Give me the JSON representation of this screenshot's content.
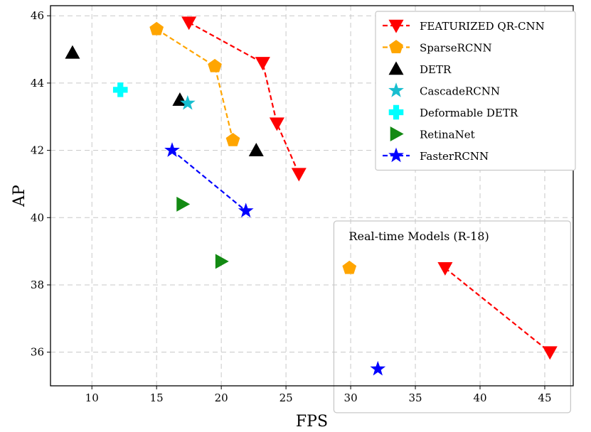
{
  "chart_data": {
    "type": "scatter",
    "xlabel": "FPS",
    "ylabel": "AP",
    "xlim": [
      6.8,
      47.2
    ],
    "ylim": [
      35.0,
      46.3
    ],
    "xticks": [
      10,
      15,
      20,
      25,
      30,
      35,
      40,
      45
    ],
    "yticks": [
      36,
      38,
      40,
      42,
      44,
      46
    ],
    "grid": true,
    "legend_position": "top-right",
    "inset_box": {
      "title": "Real-time Models (R-18)",
      "xrange": [
        28.7,
        47.0
      ],
      "yrange": [
        34.2,
        39.9
      ]
    },
    "series": [
      {
        "name": "FEATURIZED QR-CNN",
        "marker": "triangle-down",
        "color": "#ff0000",
        "dashed_line": true,
        "points": [
          [
            17.5,
            45.8
          ],
          [
            23.2,
            44.6
          ],
          [
            24.3,
            42.8
          ],
          [
            26.0,
            41.3
          ]
        ]
      },
      {
        "name": "SparseRCNN",
        "marker": "pentagon",
        "color": "#ffa500",
        "dashed_line": true,
        "points": [
          [
            15.0,
            45.6
          ],
          [
            19.5,
            44.5
          ],
          [
            20.9,
            42.3
          ]
        ]
      },
      {
        "name": "DETR",
        "marker": "triangle-up",
        "color": "#000000",
        "dashed_line": false,
        "points": [
          [
            8.5,
            44.9
          ],
          [
            16.8,
            43.5
          ],
          [
            22.7,
            42.0
          ]
        ]
      },
      {
        "name": "CascadeRCNN",
        "marker": "star",
        "color": "#17becf",
        "dashed_line": false,
        "points": [
          [
            17.4,
            43.4
          ]
        ]
      },
      {
        "name": "Deformable DETR",
        "marker": "plus",
        "color": "#00ffff",
        "dashed_line": false,
        "points": [
          [
            12.2,
            43.8
          ]
        ]
      },
      {
        "name": "RetinaNet",
        "marker": "triangle-right",
        "color": "#138a13",
        "dashed_line": false,
        "points": [
          [
            17.0,
            40.4
          ],
          [
            20.0,
            38.7
          ]
        ]
      },
      {
        "name": "FasterRCNN",
        "marker": "star",
        "color": "#0000ff",
        "dashed_line": true,
        "points": [
          [
            16.2,
            42.0
          ],
          [
            21.9,
            40.2
          ]
        ]
      },
      {
        "name": "",
        "marker": "triangle-down",
        "color": "#ff0000",
        "dashed_line": true,
        "legend": false,
        "points": [
          [
            37.3,
            38.5
          ],
          [
            45.4,
            36.0
          ]
        ]
      },
      {
        "name": "",
        "marker": "pentagon",
        "color": "#ffa500",
        "dashed_line": false,
        "legend": false,
        "points": [
          [
            29.9,
            38.5
          ]
        ]
      },
      {
        "name": "",
        "marker": "star",
        "color": "#0000ff",
        "dashed_line": false,
        "legend": false,
        "points": [
          [
            32.1,
            35.5
          ]
        ]
      }
    ]
  }
}
